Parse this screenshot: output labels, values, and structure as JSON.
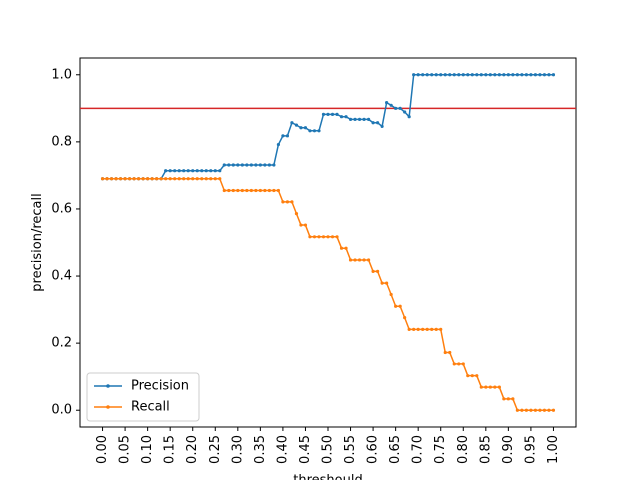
{
  "chart_data": {
    "type": "line",
    "xlabel": "threshould",
    "ylabel": "precision/recall",
    "xlim": [
      -0.05,
      1.05
    ],
    "ylim": [
      -0.05,
      1.05
    ],
    "x_ticks": [
      "0.00",
      "0.05",
      "0.10",
      "0.15",
      "0.20",
      "0.25",
      "0.30",
      "0.35",
      "0.40",
      "0.45",
      "0.50",
      "0.55",
      "0.60",
      "0.65",
      "0.70",
      "0.75",
      "0.80",
      "0.85",
      "0.90",
      "0.95",
      "1.00"
    ],
    "y_ticks": [
      "0.0",
      "0.2",
      "0.4",
      "0.6",
      "0.8",
      "1.0"
    ],
    "reference_line": {
      "y": 0.9,
      "color": "#d62728"
    },
    "legend": {
      "placement": "lower-left"
    },
    "x": [
      0.0,
      0.01,
      0.02,
      0.03,
      0.04,
      0.05,
      0.06,
      0.07,
      0.08,
      0.09,
      0.1,
      0.11,
      0.12,
      0.13,
      0.14,
      0.15,
      0.16,
      0.17,
      0.18,
      0.19,
      0.2,
      0.21,
      0.22,
      0.23,
      0.24,
      0.25,
      0.26,
      0.27,
      0.28,
      0.29,
      0.3,
      0.31,
      0.32,
      0.33,
      0.34,
      0.35,
      0.36,
      0.37,
      0.38,
      0.39,
      0.4,
      0.41,
      0.42,
      0.43,
      0.44,
      0.45,
      0.46,
      0.47,
      0.48,
      0.49,
      0.5,
      0.51,
      0.52,
      0.53,
      0.54,
      0.55,
      0.56,
      0.57,
      0.58,
      0.59,
      0.6,
      0.61,
      0.62,
      0.63,
      0.64,
      0.65,
      0.66,
      0.67,
      0.68,
      0.69,
      0.7,
      0.71,
      0.72,
      0.73,
      0.74,
      0.75,
      0.76,
      0.77,
      0.78,
      0.79,
      0.8,
      0.81,
      0.82,
      0.83,
      0.84,
      0.85,
      0.86,
      0.87,
      0.88,
      0.89,
      0.9,
      0.91,
      0.92,
      0.93,
      0.94,
      0.95,
      0.96,
      0.97,
      0.98,
      0.99,
      1.0
    ],
    "series": [
      {
        "name": "Precision",
        "color": "#1f77b4",
        "values": [
          0.69,
          0.69,
          0.69,
          0.69,
          0.69,
          0.69,
          0.69,
          0.69,
          0.69,
          0.69,
          0.69,
          0.69,
          0.69,
          0.69,
          0.714,
          0.714,
          0.714,
          0.714,
          0.714,
          0.714,
          0.714,
          0.714,
          0.714,
          0.714,
          0.714,
          0.714,
          0.714,
          0.731,
          0.731,
          0.731,
          0.731,
          0.731,
          0.731,
          0.731,
          0.731,
          0.731,
          0.731,
          0.731,
          0.731,
          0.792,
          0.818,
          0.818,
          0.857,
          0.85,
          0.842,
          0.842,
          0.833,
          0.833,
          0.833,
          0.882,
          0.882,
          0.882,
          0.882,
          0.875,
          0.875,
          0.867,
          0.867,
          0.867,
          0.867,
          0.867,
          0.857,
          0.857,
          0.846,
          0.917,
          0.909,
          0.9,
          0.9,
          0.889,
          0.875,
          1.0,
          1.0,
          1.0,
          1.0,
          1.0,
          1.0,
          1.0,
          1.0,
          1.0,
          1.0,
          1.0,
          1.0,
          1.0,
          1.0,
          1.0,
          1.0,
          1.0,
          1.0,
          1.0,
          1.0,
          1.0,
          1.0,
          1.0,
          1.0,
          1.0,
          1.0,
          1.0,
          1.0,
          1.0,
          1.0,
          1.0,
          1.0
        ]
      },
      {
        "name": "Recall",
        "color": "#ff7f0e",
        "values": [
          0.69,
          0.69,
          0.69,
          0.69,
          0.69,
          0.69,
          0.69,
          0.69,
          0.69,
          0.69,
          0.69,
          0.69,
          0.69,
          0.69,
          0.69,
          0.69,
          0.69,
          0.69,
          0.69,
          0.69,
          0.69,
          0.69,
          0.69,
          0.69,
          0.69,
          0.69,
          0.69,
          0.655,
          0.655,
          0.655,
          0.655,
          0.655,
          0.655,
          0.655,
          0.655,
          0.655,
          0.655,
          0.655,
          0.655,
          0.655,
          0.621,
          0.621,
          0.621,
          0.586,
          0.552,
          0.552,
          0.517,
          0.517,
          0.517,
          0.517,
          0.517,
          0.517,
          0.517,
          0.483,
          0.483,
          0.448,
          0.448,
          0.448,
          0.448,
          0.448,
          0.414,
          0.414,
          0.379,
          0.379,
          0.345,
          0.31,
          0.31,
          0.276,
          0.241,
          0.241,
          0.241,
          0.241,
          0.241,
          0.241,
          0.241,
          0.241,
          0.172,
          0.172,
          0.138,
          0.138,
          0.138,
          0.103,
          0.103,
          0.103,
          0.069,
          0.069,
          0.069,
          0.069,
          0.069,
          0.034,
          0.034,
          0.034,
          0.0,
          0.0,
          0.0,
          0.0,
          0.0,
          0.0,
          0.0,
          0.0,
          0.0
        ]
      }
    ]
  }
}
